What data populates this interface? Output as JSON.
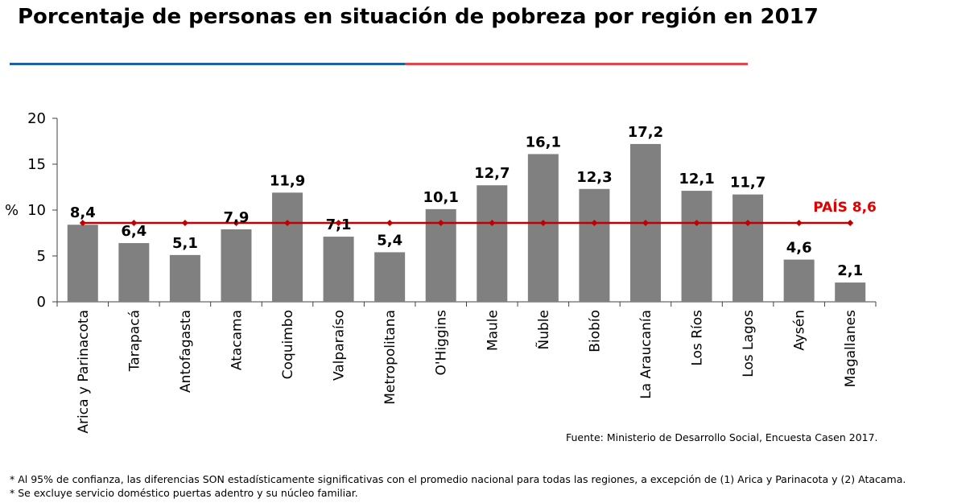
{
  "page": {
    "title": "Porcentaje de personas en situación de pobreza por región en 2017",
    "source": "Fuente: Ministerio de Desarrollo Social, Encuesta Casen 2017.",
    "footnotes": [
      "* Al 95% de confianza, las diferencias SON estadísticamente significativas con el promedio nacional para todas las regiones, a excepción de (1) Arica y Parinacota y (2) Atacama.",
      "* Se excluye servicio doméstico puertas adentro y su núcleo familiar."
    ]
  },
  "colors": {
    "bar": "#808080",
    "reference_line": "#C00000",
    "reference_label": "#E00000",
    "rule_left": "#1F5FA8",
    "rule_right": "#E0474C",
    "axis": "#404040"
  },
  "chart_data": {
    "type": "bar",
    "title": "Porcentaje de personas en situación de pobreza por región en 2017",
    "xlabel": "",
    "ylabel": "%",
    "ylim": [
      0,
      20
    ],
    "yticks": [
      0,
      5,
      10,
      15,
      20
    ],
    "categories": [
      "Arica y Parinacota",
      "Tarapacá",
      "Antofagasta",
      "Atacama",
      "Coquimbo",
      "Valparaíso",
      "Metropolitana",
      "O'Higgins",
      "Maule",
      "Ñuble",
      "Biobío",
      "La Araucanía",
      "Los Ríos",
      "Los Lagos",
      "Aysén",
      "Magallanes"
    ],
    "series": [
      {
        "values": [
          8.4,
          6.4,
          5.1,
          7.9,
          11.9,
          7.1,
          5.4,
          10.1,
          12.7,
          16.1,
          12.3,
          17.2,
          12.1,
          11.7,
          4.6,
          2.1
        ],
        "data_labels": [
          "8,4",
          "6,4",
          "5,1",
          "7,9",
          "11,9",
          "7,1",
          "5,4",
          "10,1",
          "12,7",
          "16,1",
          "12,3",
          "17,2",
          "12,1",
          "11,7",
          "4,6",
          "2,1"
        ]
      }
    ],
    "reference_line": {
      "label": "PAÍS 8,6",
      "value": 8.6
    },
    "grid": false,
    "legend": "none"
  }
}
